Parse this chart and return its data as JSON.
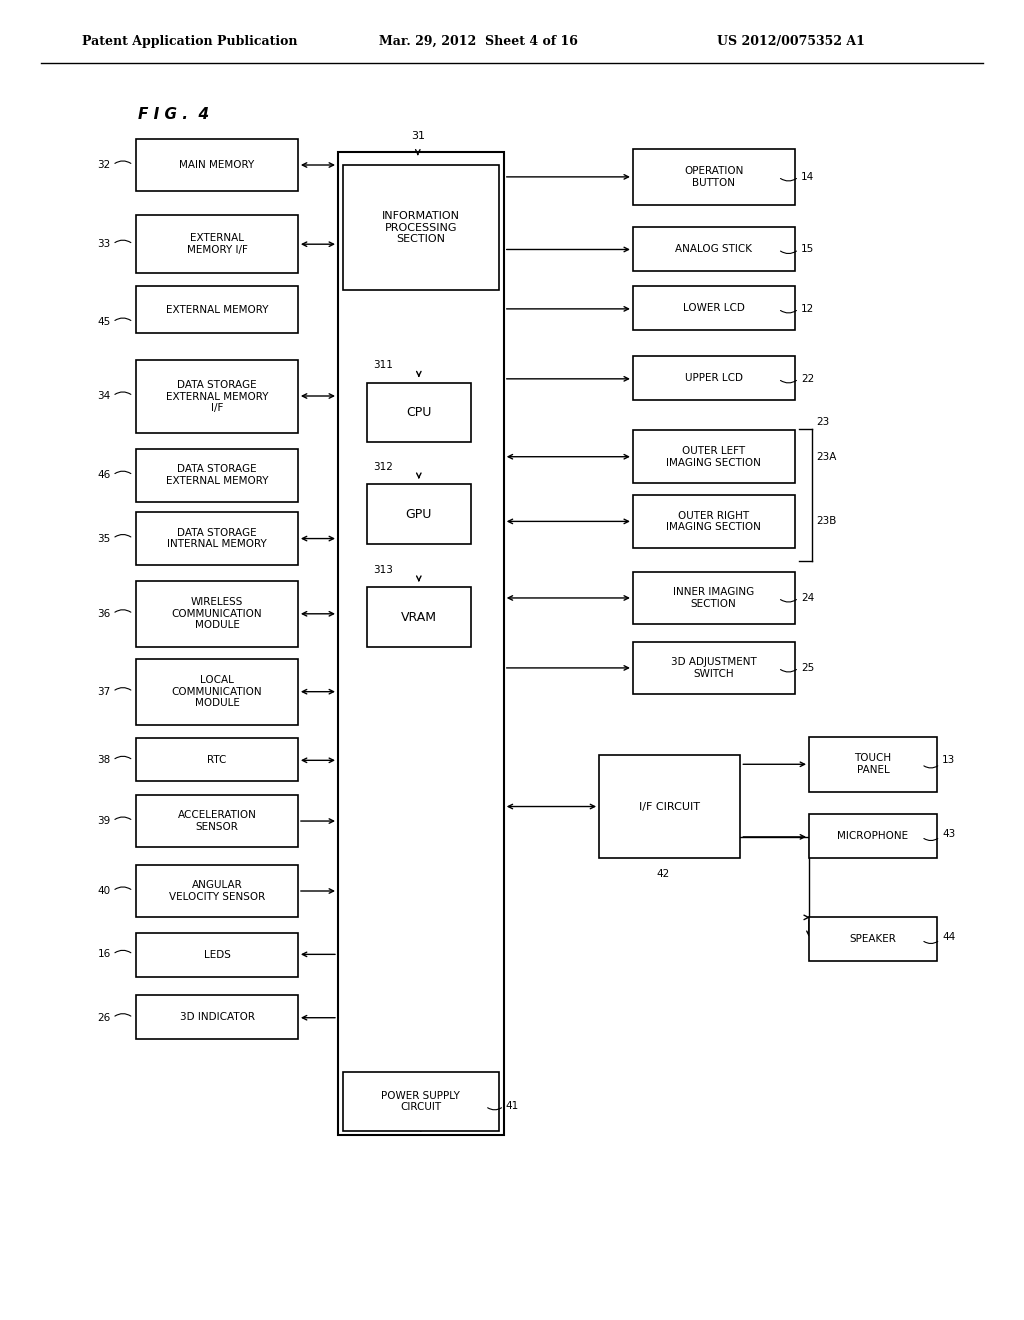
{
  "title": "F I G .  4",
  "header_left": "Patent Application Publication",
  "header_mid": "Mar. 29, 2012  Sheet 4 of 16",
  "header_right": "US 2012/0075352 A1",
  "bg_color": "#ffffff"
}
